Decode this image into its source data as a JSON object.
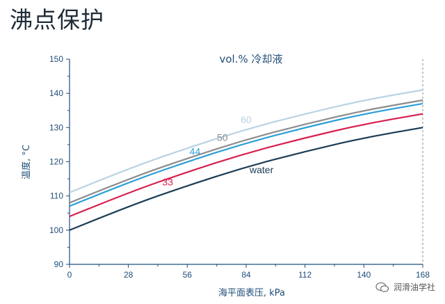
{
  "page_title": "沸点保护",
  "watermark": {
    "text": "润滑油学社",
    "icon": "wechat-icon"
  },
  "chart_data": {
    "type": "line",
    "title": "vol.% 冷却液",
    "xlabel": "海平面表压, kPa",
    "ylabel": "温度, °C",
    "xlim": [
      0,
      168
    ],
    "ylim": [
      90,
      150
    ],
    "x_ticks": [
      "0",
      "28",
      "56",
      "84",
      "112",
      "140",
      "168"
    ],
    "y_ticks": [
      "90",
      "100",
      "110",
      "120",
      "130",
      "140",
      "150"
    ],
    "grid": false,
    "colors": {
      "axis": "#1f4e79"
    },
    "series": [
      {
        "name": "60",
        "color": "#b9d3e3",
        "x": [
          0,
          28,
          56,
          84,
          112,
          140,
          168
        ],
        "y": [
          111,
          118,
          124,
          129.5,
          134,
          138,
          141
        ]
      },
      {
        "name": "50",
        "color": "#8c8c8c",
        "x": [
          0,
          28,
          56,
          84,
          112,
          140,
          168
        ],
        "y": [
          108,
          115,
          121,
          126.5,
          131,
          135,
          138
        ]
      },
      {
        "name": "44",
        "color": "#2a9fd8",
        "x": [
          0,
          28,
          56,
          84,
          112,
          140,
          168
        ],
        "y": [
          107,
          114,
          120,
          125.5,
          130,
          134,
          137
        ]
      },
      {
        "name": "33",
        "color": "#d6204e",
        "x": [
          0,
          28,
          56,
          84,
          112,
          140,
          168
        ],
        "y": [
          104,
          111,
          117,
          122.5,
          127,
          131,
          134
        ]
      },
      {
        "name": "water",
        "color": "#1a3c55",
        "x": [
          0,
          28,
          56,
          84,
          112,
          140,
          168
        ],
        "y": [
          100,
          107,
          113,
          118.5,
          123,
          127,
          130
        ]
      }
    ]
  }
}
